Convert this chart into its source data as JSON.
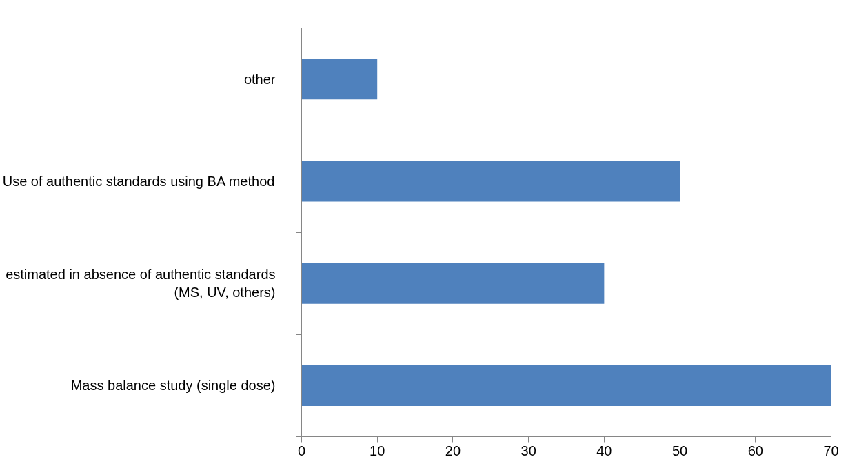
{
  "chart_data": {
    "type": "bar",
    "orientation": "horizontal",
    "categories": [
      "other",
      "Use of authentic standards using BA method",
      "estimated in absence of authentic standards\n(MS, UV, others)",
      "Mass balance study (single dose)"
    ],
    "values": [
      10,
      50,
      40,
      70
    ],
    "color": "#4f81bd",
    "xlim": [
      0,
      70
    ],
    "xticks": [
      0,
      10,
      20,
      30,
      40,
      50,
      60,
      70
    ],
    "grid": false
  }
}
